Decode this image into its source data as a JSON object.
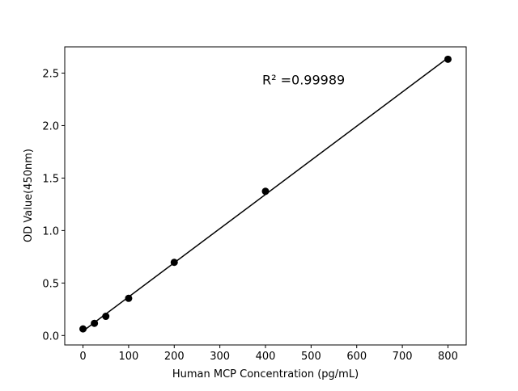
{
  "chart_data": {
    "type": "scatter",
    "title": "",
    "xlabel": "Human MCP Concentration (pg/mL)",
    "ylabel": "OD Value(450nm)",
    "xlim": [
      -40,
      840
    ],
    "ylim": [
      -0.09,
      2.75
    ],
    "x_ticks": [
      0,
      100,
      200,
      300,
      400,
      500,
      600,
      700,
      800
    ],
    "y_ticks": [
      0.0,
      0.5,
      1.0,
      1.5,
      2.0,
      2.5
    ],
    "x_tick_labels": [
      "0",
      "100",
      "200",
      "300",
      "400",
      "500",
      "600",
      "700",
      "800"
    ],
    "y_tick_labels": [
      "0.0",
      "0.5",
      "1.0",
      "1.5",
      "2.0",
      "2.5"
    ],
    "grid": false,
    "series": [
      {
        "x": [
          0,
          25,
          50,
          100,
          200,
          400,
          800
        ],
        "y": [
          0.063,
          0.116,
          0.183,
          0.354,
          0.697,
          1.374,
          2.632
        ],
        "marker": "circle",
        "color": "#000000",
        "fit_line": "linear"
      }
    ],
    "annotation": {
      "text": "R² =0.99989",
      "x": 400,
      "y": 2.36
    }
  }
}
